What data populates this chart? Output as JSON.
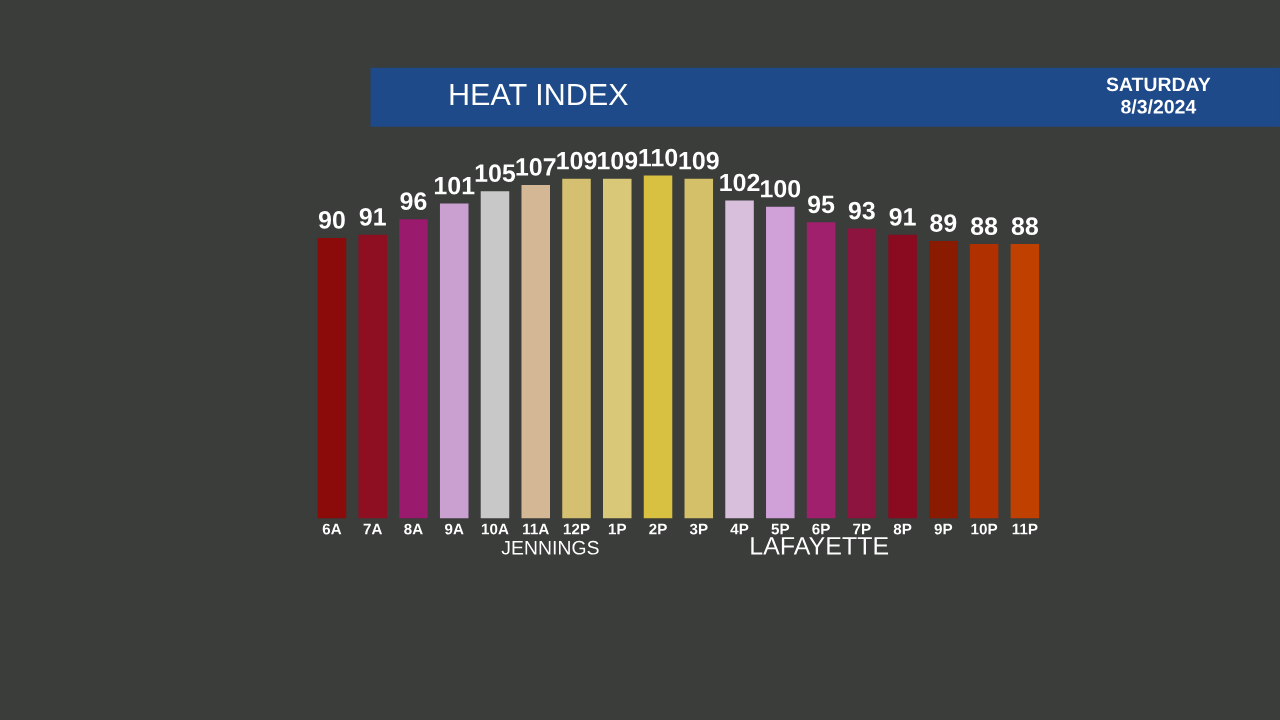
{
  "chart_data": {
    "type": "bar",
    "title": "HEAT INDEX",
    "subtitle": "SATURDAY\n8/3/2024",
    "categories": [
      "6A",
      "7A",
      "8A",
      "9A",
      "10A",
      "11A",
      "12P",
      "1P",
      "2P",
      "3P",
      "4P",
      "5P",
      "6P",
      "7P",
      "8P",
      "9P",
      "10P",
      "11P"
    ],
    "values": [
      90,
      91,
      96,
      101,
      105,
      107,
      109,
      109,
      110,
      109,
      102,
      100,
      95,
      93,
      91,
      89,
      88,
      88
    ],
    "colors": [
      "#8b0a0a",
      "#8e0f22",
      "#9a1a6e",
      "#c9a0d0",
      "#c8c8c8",
      "#d4b896",
      "#d4c070",
      "#d8c878",
      "#d8c040",
      "#d4c068",
      "#d8c0dc",
      "#d0a0d8",
      "#a0206e",
      "#8e1440",
      "#8a0a20",
      "#8a1a00",
      "#b03000",
      "#c04000"
    ],
    "data_labels": true,
    "grid": false,
    "legend": false,
    "annotations": [
      "JENNINGS",
      "LAFAYETTE"
    ]
  }
}
